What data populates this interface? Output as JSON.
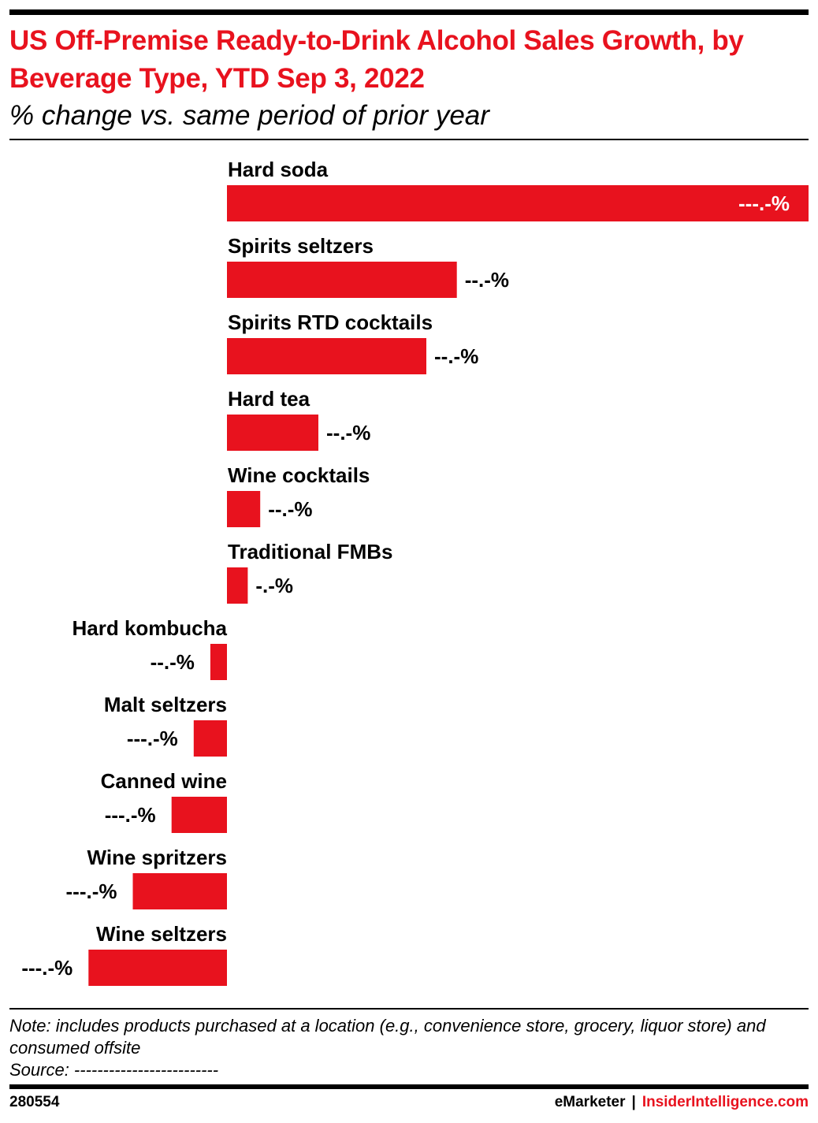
{
  "header": {
    "title": "US Off-Premise Ready-to-Drink Alcohol Sales Growth, by Beverage Type, YTD Sep 3, 2022",
    "subtitle": "% change vs. same period of prior year"
  },
  "chart_data": {
    "type": "bar",
    "orientation": "horizontal",
    "bar_color": "#e8121e",
    "categories": [
      "Hard soda",
      "Spirits seltzers",
      "Spirits RTD cocktails",
      "Hard tea",
      "Wine cocktails",
      "Traditional FMBs",
      "Hard kombucha",
      "Malt seltzers",
      "Canned wine",
      "Wine spritzers",
      "Wine seltzers"
    ],
    "values": [
      210,
      83,
      72,
      33,
      12,
      7.5,
      -6,
      -12,
      -20,
      -34,
      -50
    ],
    "value_labels": [
      "---.-%",
      "--.-%",
      "--.-%",
      "--.-%",
      "--.-%",
      "-.-%",
      "--.-%",
      "---.-%",
      "---.-%",
      "---.-%",
      "---.-%"
    ],
    "xlim": [
      -80,
      210
    ]
  },
  "footer": {
    "note": "Note: includes products purchased at a location (e.g., convenience store, grocery, liquor store) and consumed offsite",
    "source": "Source: -------------------------",
    "chart_id": "280554",
    "brand_left": "eMarketer",
    "separator": "|",
    "brand_right": "InsiderIntelligence.com"
  }
}
